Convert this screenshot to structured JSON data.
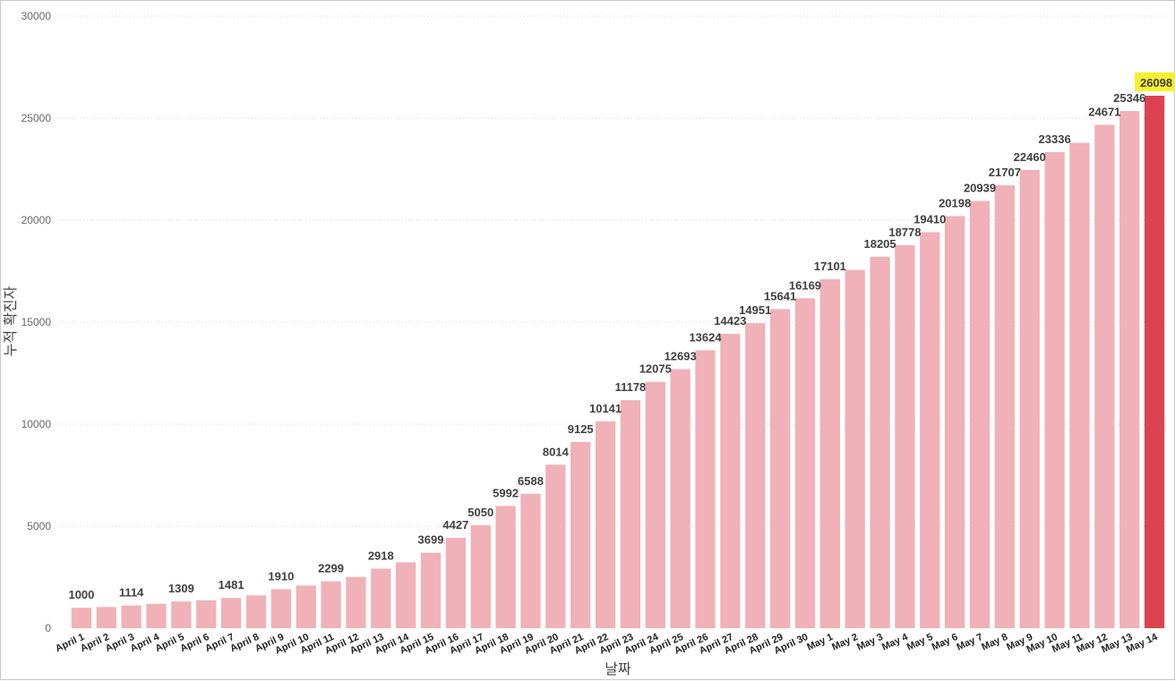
{
  "chart_data": {
    "type": "bar",
    "xlabel": "날짜",
    "ylabel": "누적 확진자",
    "ylim": [
      0,
      30000
    ],
    "y_ticks": [
      "0",
      "5000",
      "10000",
      "15000",
      "20000",
      "25000",
      "30000"
    ],
    "grid": "horizontal dotted",
    "categories": [
      "April 1",
      "April 2",
      "April 3",
      "April 4",
      "April 5",
      "April 6",
      "April 7",
      "April 8",
      "April 9",
      "April 10",
      "April 11",
      "April 12",
      "April 13",
      "April 14",
      "April 15",
      "April 16",
      "April 17",
      "April 18",
      "April 19",
      "April 20",
      "April 21",
      "April 22",
      "April 23",
      "April 24",
      "April 25",
      "April 26",
      "April 27",
      "April 28",
      "April 29",
      "April 30",
      "May 1",
      "May 2",
      "May 3",
      "May 4",
      "May 5",
      "May 6",
      "May 7",
      "May 8",
      "May 9",
      "May 10",
      "May 11",
      "May 12",
      "May 13",
      "May 14"
    ],
    "values": [
      1000,
      1040,
      1114,
      1190,
      1309,
      1370,
      1481,
      1610,
      1910,
      2090,
      2299,
      2510,
      2918,
      3230,
      3699,
      4427,
      5050,
      5992,
      6588,
      8014,
      9125,
      10141,
      11178,
      12075,
      12693,
      13624,
      14423,
      14951,
      15641,
      16169,
      17101,
      17560,
      18205,
      18778,
      19410,
      20198,
      20939,
      21707,
      22460,
      23336,
      23790,
      24671,
      25346,
      26098
    ],
    "data_labels": [
      "1000",
      "",
      "1114",
      "",
      "1309",
      "",
      "1481",
      "",
      "1910",
      "",
      "2299",
      "",
      "2918",
      "",
      "3699",
      "4427",
      "5050",
      "5992",
      "6588",
      "8014",
      "9125",
      "10141",
      "11178",
      "12075",
      "12693",
      "13624",
      "14423",
      "14951",
      "15641",
      "16169",
      "17101",
      "",
      "18205",
      "18778",
      "19410",
      "20198",
      "20939",
      "21707",
      "22460",
      "23336",
      "",
      "24671",
      "25346",
      "26098"
    ],
    "highlight_index": 43,
    "colors": {
      "bar": "#f0b1b8",
      "highlight_bar": "#dc4350",
      "highlight_label_bg": "#f7f030",
      "grid": "#d4d4d4"
    }
  }
}
